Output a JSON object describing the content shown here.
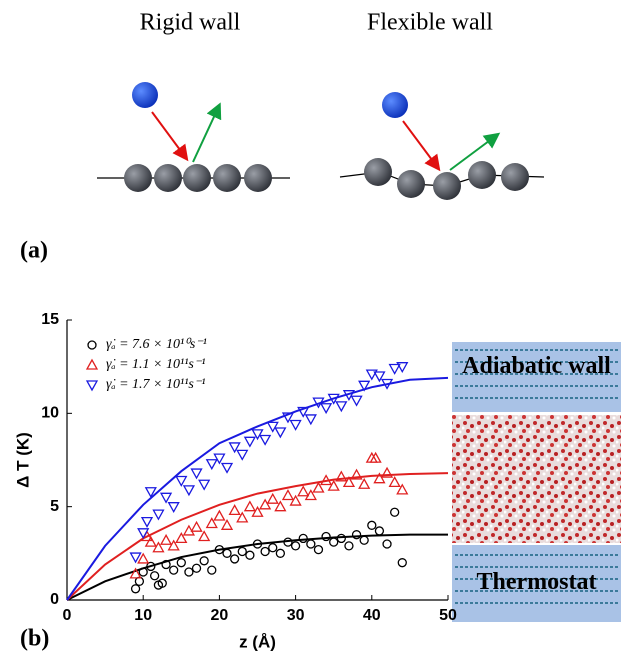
{
  "panel_a": {
    "label": "(a)",
    "left_title": "Rigid wall",
    "right_title": "Flexible wall"
  },
  "panel_b": {
    "label": "(b)",
    "top_box": "Adiabatic wall",
    "bottom_box": "Thermostat"
  },
  "chart_data": {
    "type": "scatter",
    "x_label": "z (Å)",
    "y_label": "Δ T (K)",
    "xlim": [
      0,
      50
    ],
    "ylim": [
      0,
      15
    ],
    "xticks": [
      0,
      10,
      20,
      30,
      40,
      50
    ],
    "yticks": [
      0,
      5,
      10,
      15
    ],
    "series": [
      {
        "name": "γ̇ₐ = 7.6 × 10¹⁰s⁻¹",
        "color": "#000000",
        "marker": "circle",
        "x": [
          9,
          9.5,
          10,
          11,
          11.5,
          12,
          12.5,
          13,
          14,
          15,
          16,
          17,
          18,
          19,
          20,
          21,
          22,
          23,
          24,
          25,
          26,
          27,
          28,
          29,
          30,
          31,
          32,
          33,
          34,
          35,
          36,
          37,
          38,
          39,
          40,
          41,
          42,
          43,
          44
        ],
        "values": [
          0.6,
          1.0,
          1.5,
          1.8,
          1.3,
          0.8,
          0.9,
          1.9,
          1.6,
          2.0,
          1.5,
          1.7,
          2.1,
          1.6,
          2.7,
          2.5,
          2.2,
          2.6,
          2.4,
          3.0,
          2.6,
          2.8,
          2.5,
          3.1,
          2.9,
          3.3,
          3.0,
          2.7,
          3.4,
          3.1,
          3.3,
          2.9,
          3.5,
          3.2,
          4.0,
          3.7,
          3.0,
          4.7,
          2.0
        ]
      },
      {
        "name": "γ̇ₐ = 1.1 × 10¹¹s⁻¹",
        "color": "#e02020",
        "marker": "triangle-up",
        "x": [
          9,
          10,
          10.5,
          11,
          12,
          13,
          14,
          15,
          16,
          17,
          18,
          19,
          20,
          21,
          22,
          23,
          24,
          25,
          26,
          27,
          28,
          29,
          30,
          31,
          32,
          33,
          34,
          35,
          36,
          37,
          38,
          39,
          40,
          40.5,
          41,
          42,
          43,
          44
        ],
        "values": [
          1.4,
          2.2,
          3.4,
          3.1,
          2.8,
          3.2,
          2.9,
          3.3,
          3.7,
          3.9,
          3.4,
          4.1,
          4.5,
          4.0,
          4.8,
          4.4,
          5.0,
          4.7,
          5.1,
          5.4,
          5.0,
          5.6,
          5.3,
          5.8,
          5.6,
          6.0,
          6.4,
          6.1,
          6.6,
          6.3,
          6.7,
          6.2,
          7.6,
          7.6,
          6.5,
          6.8,
          6.3,
          5.9
        ]
      },
      {
        "name": "γ̇ₐ = 1.7 × 10¹¹s⁻¹",
        "color": "#1a1ae0",
        "marker": "triangle-down",
        "x": [
          9,
          10,
          10.5,
          11,
          12,
          13,
          14,
          15,
          16,
          17,
          18,
          19,
          20,
          21,
          22,
          23,
          24,
          25,
          26,
          27,
          28,
          29,
          30,
          31,
          32,
          33,
          34,
          35,
          36,
          37,
          38,
          39,
          40,
          41,
          42,
          43,
          44
        ],
        "values": [
          2.3,
          3.6,
          4.2,
          5.8,
          4.6,
          5.5,
          5.0,
          6.4,
          5.9,
          6.8,
          6.2,
          7.3,
          7.6,
          7.1,
          8.2,
          7.8,
          8.5,
          8.9,
          8.6,
          9.3,
          9.0,
          9.8,
          9.4,
          10.1,
          9.7,
          10.6,
          10.3,
          10.8,
          10.4,
          11.0,
          10.7,
          11.5,
          12.1,
          12.0,
          11.6,
          12.4,
          12.5
        ]
      }
    ],
    "fits": [
      {
        "color": "#000000",
        "x": [
          0,
          5,
          10,
          15,
          20,
          25,
          30,
          35,
          40,
          45,
          50
        ],
        "values": [
          0,
          1.0,
          1.7,
          2.3,
          2.7,
          3.0,
          3.2,
          3.35,
          3.45,
          3.5,
          3.5
        ]
      },
      {
        "color": "#e02020",
        "x": [
          0,
          5,
          10,
          15,
          20,
          25,
          30,
          35,
          40,
          45,
          50
        ],
        "values": [
          0,
          1.9,
          3.3,
          4.3,
          5.1,
          5.7,
          6.1,
          6.45,
          6.65,
          6.75,
          6.8
        ]
      },
      {
        "color": "#1a1ae0",
        "x": [
          0,
          5,
          10,
          15,
          20,
          25,
          30,
          35,
          40,
          45,
          50
        ],
        "values": [
          0,
          2.9,
          5.1,
          6.9,
          8.4,
          9.3,
          10.1,
          10.8,
          11.4,
          11.8,
          11.9
        ]
      }
    ]
  }
}
